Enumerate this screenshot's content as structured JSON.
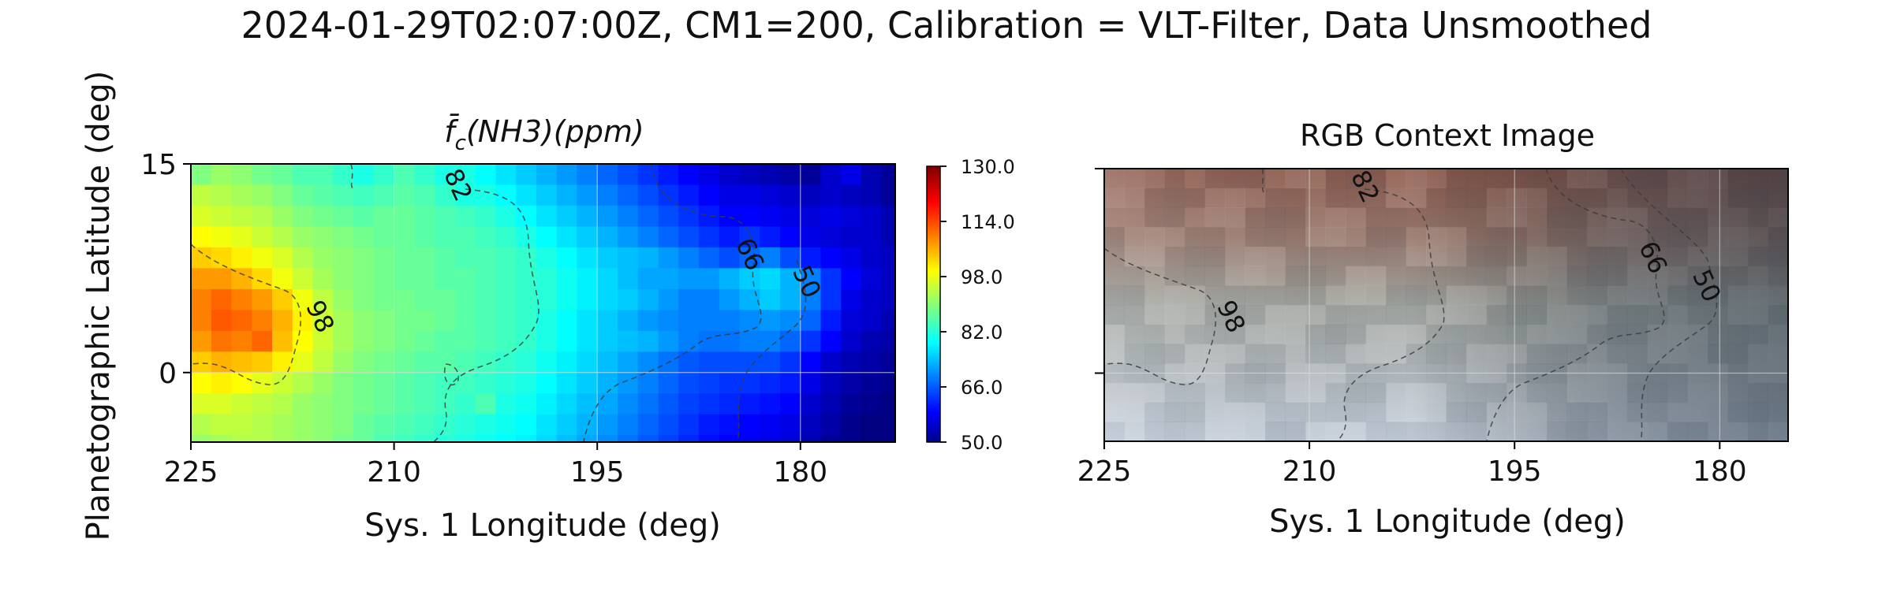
{
  "figure": {
    "suptitle": "2024-01-29T02:07:00Z, CM1=200, Calibration = VLT-Filter, Data Unsmoothed"
  },
  "colors": {
    "colormap": "jet",
    "contour": "#3a3a3a",
    "grid": "#d8d8d8"
  },
  "chart_data": [
    {
      "type": "heatmap",
      "title_main": "f̄",
      "title_sub": "c",
      "title_rest": "(NH3)(ppm)",
      "xlabel": "Sys. 1 Longitude (deg)",
      "ylabel": "Planetographic Latitude (deg)",
      "xlim": [
        225,
        173
      ],
      "ylim": [
        -5,
        15
      ],
      "x_ticks": [
        "225",
        "210",
        "195",
        "180"
      ],
      "x_tick_values": [
        225,
        210,
        195,
        180
      ],
      "y_ticks": [
        "15",
        "0"
      ],
      "y_tick_values": [
        15,
        0
      ],
      "grid": true,
      "colorbar": {
        "ticks": [
          "130.0",
          "114.0",
          "98.0",
          "82.0",
          "66.0",
          "50.0"
        ],
        "tick_values": [
          130,
          114,
          98,
          82,
          66,
          50
        ],
        "range": [
          50,
          130
        ]
      },
      "grid_cells": {
        "lon_start": 225,
        "lon_step": -1.5,
        "lat_start": 15,
        "lat_step": -1.5,
        "rows": [
          [
            90,
            92,
            91,
            89,
            88,
            86,
            86,
            84,
            82,
            84,
            86,
            84,
            82,
            82,
            80,
            78,
            76,
            74,
            72,
            70,
            68,
            66,
            64,
            62,
            60,
            58,
            56,
            55,
            54,
            53,
            52,
            56,
            58,
            54,
            52,
            52,
            50,
            50,
            50,
            50
          ],
          [
            95,
            94,
            93,
            92,
            90,
            88,
            87,
            86,
            85,
            86,
            87,
            86,
            84,
            82,
            82,
            80,
            78,
            76,
            74,
            72,
            70,
            68,
            66,
            64,
            62,
            60,
            58,
            58,
            57,
            56,
            55,
            56,
            55,
            54,
            52,
            51,
            50,
            50,
            50,
            50
          ],
          [
            97,
            96,
            95,
            94,
            92,
            90,
            89,
            88,
            87,
            88,
            88,
            87,
            86,
            85,
            84,
            82,
            80,
            78,
            76,
            74,
            72,
            70,
            68,
            66,
            64,
            62,
            60,
            60,
            59,
            58,
            57,
            58,
            57,
            56,
            54,
            52,
            50,
            50,
            50,
            50
          ],
          [
            100,
            99,
            98,
            96,
            94,
            92,
            91,
            90,
            89,
            88,
            88,
            87,
            86,
            86,
            85,
            84,
            82,
            80,
            78,
            76,
            74,
            72,
            70,
            68,
            66,
            64,
            62,
            64,
            62,
            60,
            58,
            57,
            56,
            56,
            54,
            52,
            50,
            50,
            50,
            50
          ],
          [
            104,
            103,
            101,
            99,
            97,
            94,
            92,
            91,
            90,
            89,
            88,
            88,
            87,
            86,
            86,
            85,
            84,
            82,
            80,
            78,
            76,
            75,
            74,
            72,
            70,
            68,
            66,
            68,
            70,
            66,
            62,
            60,
            58,
            56,
            55,
            53,
            51,
            50,
            50,
            50
          ],
          [
            108,
            108,
            106,
            103,
            99,
            96,
            93,
            91,
            90,
            89,
            88,
            88,
            87,
            87,
            86,
            85,
            84,
            83,
            81,
            79,
            77,
            75,
            73,
            73,
            72,
            72,
            74,
            76,
            77,
            74,
            70,
            64,
            60,
            57,
            55,
            53,
            51,
            50,
            50,
            50
          ],
          [
            110,
            112,
            110,
            108,
            104,
            99,
            95,
            92,
            90,
            89,
            89,
            88,
            88,
            87,
            86,
            85,
            84,
            83,
            81,
            79,
            77,
            76,
            74,
            72,
            70,
            70,
            72,
            74,
            76,
            74,
            70,
            64,
            58,
            56,
            55,
            54,
            52,
            50,
            50,
            50
          ],
          [
            110,
            113,
            112,
            110,
            106,
            101,
            96,
            93,
            91,
            90,
            89,
            89,
            88,
            87,
            86,
            85,
            84,
            82,
            80,
            78,
            76,
            74,
            72,
            71,
            70,
            70,
            70,
            71,
            72,
            71,
            68,
            62,
            57,
            56,
            54,
            52,
            51,
            50,
            50,
            50
          ],
          [
            108,
            111,
            110,
            112,
            105,
            100,
            96,
            93,
            91,
            90,
            89,
            88,
            87,
            87,
            86,
            85,
            84,
            82,
            80,
            78,
            76,
            75,
            74,
            72,
            70,
            69,
            69,
            70,
            70,
            68,
            64,
            60,
            56,
            54,
            53,
            52,
            51,
            50,
            50,
            50
          ],
          [
            104,
            106,
            105,
            104,
            101,
            98,
            95,
            92,
            90,
            89,
            88,
            87,
            87,
            86,
            85,
            84,
            83,
            81,
            79,
            77,
            75,
            73,
            71,
            69,
            67,
            66,
            66,
            66,
            66,
            64,
            60,
            56,
            54,
            53,
            52,
            51,
            50,
            50,
            50,
            50
          ],
          [
            100,
            101,
            100,
            98,
            96,
            94,
            92,
            90,
            89,
            88,
            87,
            86,
            85,
            85,
            84,
            83,
            82,
            80,
            78,
            76,
            74,
            72,
            70,
            68,
            66,
            65,
            64,
            64,
            63,
            62,
            58,
            55,
            53,
            52,
            51,
            50,
            50,
            50,
            50,
            50
          ],
          [
            97,
            97,
            96,
            95,
            94,
            92,
            91,
            90,
            89,
            88,
            87,
            86,
            85,
            84,
            86,
            82,
            81,
            79,
            77,
            75,
            73,
            71,
            69,
            67,
            65,
            64,
            63,
            62,
            61,
            60,
            56,
            54,
            52,
            51,
            50,
            50,
            50,
            50,
            50,
            50
          ],
          [
            94,
            95,
            95,
            94,
            93,
            92,
            91,
            90,
            88,
            87,
            86,
            85,
            84,
            83,
            82,
            81,
            80,
            78,
            76,
            74,
            72,
            70,
            68,
            66,
            64,
            62,
            61,
            60,
            59,
            58,
            55,
            53,
            51,
            50,
            50,
            50,
            50,
            50,
            50,
            50
          ],
          [
            92,
            93,
            94,
            94,
            93,
            92,
            91,
            89,
            88,
            86,
            85,
            84,
            83,
            82,
            81,
            80,
            79,
            77,
            75,
            73,
            71,
            69,
            67,
            65,
            63,
            61,
            60,
            59,
            58,
            57,
            54,
            52,
            51,
            50,
            50,
            50,
            50,
            50,
            50,
            50
          ],
          [
            90,
            92,
            94,
            96,
            95,
            94,
            92,
            90,
            88,
            86,
            84,
            83,
            82,
            81,
            80,
            79,
            78,
            76,
            74,
            72,
            70,
            68,
            66,
            64,
            62,
            60,
            59,
            58,
            57,
            56,
            53,
            52,
            51,
            50,
            50,
            50,
            50,
            50,
            50,
            50
          ]
        ]
      },
      "contour_labels": [
        "82",
        "98",
        "66",
        "50"
      ]
    },
    {
      "type": "image",
      "title": "RGB Context Image",
      "xlabel": "Sys. 1 Longitude (deg)",
      "xlim": [
        225,
        175
      ],
      "x_ticks": [
        "225",
        "210",
        "195",
        "180"
      ],
      "x_tick_values": [
        225,
        210,
        195,
        180
      ],
      "grid": true,
      "contour_labels": [
        "82",
        "98",
        "66",
        "50"
      ]
    }
  ]
}
